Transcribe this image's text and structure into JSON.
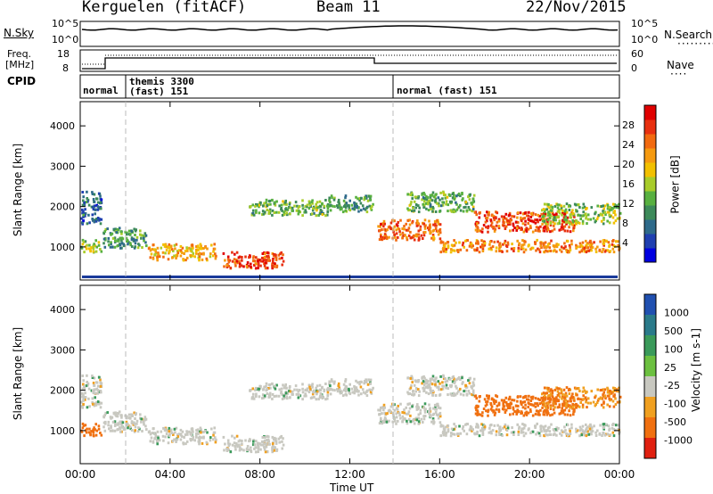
{
  "header": {
    "radar": "Kerguelen (fitACF)",
    "beam": "Beam 11",
    "date": "22/Nov/2015"
  },
  "noise_panel": {
    "left_label": "N.Sky",
    "right_label": "N.Search",
    "left_ticks": [
      "10^5",
      "10^0"
    ],
    "right_ticks": [
      "10^5",
      "10^0"
    ]
  },
  "freq_panel": {
    "left_label_1": "Freq.",
    "left_label_2": "[MHz]",
    "left_ticks": [
      "18",
      "8"
    ],
    "right_label": "Nave",
    "right_ticks": [
      "60",
      "0"
    ]
  },
  "cpid_panel": {
    "label": "CPID",
    "modes": [
      "normal",
      "themis 3300",
      "(fast) 151",
      "normal (fast) 151"
    ]
  },
  "x_axis": {
    "label": "Time UT",
    "ticks": [
      "00:00",
      "04:00",
      "08:00",
      "12:00",
      "16:00",
      "20:00",
      "00:00"
    ]
  },
  "power_panel": {
    "ylabel": "Slant Range [km]",
    "yticks": [
      "1000",
      "2000",
      "3000",
      "4000"
    ],
    "colorbar_label": "Power [dB]",
    "colorbar_ticks": [
      "4",
      "8",
      "12",
      "16",
      "20",
      "24",
      "28"
    ],
    "colors": [
      "#0000e0",
      "#1f3fb0",
      "#2e6a8a",
      "#3d8a5a",
      "#58b040",
      "#a8cc2a",
      "#f2c000",
      "#f59a10",
      "#f26a10",
      "#e83010",
      "#e00000"
    ]
  },
  "velocity_panel": {
    "ylabel": "Slant Range [km]",
    "yticks": [
      "1000",
      "2000",
      "3000",
      "4000"
    ],
    "colorbar_label": "Velocity [m s-1]",
    "colorbar_ticks": [
      "1000",
      "500",
      "100",
      "25",
      "-25",
      "-100",
      "-500",
      "-1000"
    ],
    "colors": [
      "#2050b0",
      "#2a7a8a",
      "#3a9a5a",
      "#6cc040",
      "#c8c8c0",
      "#f0a020",
      "#f07010",
      "#e02010"
    ]
  },
  "chart_data": {
    "type": "heatmap",
    "x_range_hours": [
      0,
      24
    ],
    "y_range_km": [
      180,
      4600
    ],
    "xticks": [
      "00:00",
      "04:00",
      "08:00",
      "12:00",
      "16:00",
      "20:00",
      "00:00"
    ],
    "yticks": [
      1000,
      2000,
      3000,
      4000
    ],
    "power_colorbar": [
      4,
      8,
      12,
      16,
      20,
      24,
      28
    ],
    "velocity_colorbar": [
      1000,
      500,
      100,
      25,
      -25,
      -100,
      -500,
      -1000
    ],
    "scatter_regions": [
      {
        "t": [
          0.0,
          0.9
        ],
        "r": [
          900,
          1200
        ],
        "power": 14,
        "velocity": -400
      },
      {
        "t": [
          0.0,
          0.9
        ],
        "r": [
          1600,
          2400
        ],
        "power": 6,
        "velocity": 0
      },
      {
        "t": [
          1.0,
          3.0
        ],
        "r": [
          1000,
          1500
        ],
        "power": 10,
        "velocity": 0
      },
      {
        "t": [
          3.0,
          6.0
        ],
        "r": [
          700,
          1100
        ],
        "power": 20,
        "velocity": 0
      },
      {
        "t": [
          6.3,
          9.0
        ],
        "r": [
          500,
          900
        ],
        "power": 26,
        "velocity": 0
      },
      {
        "t": [
          7.5,
          11.0
        ],
        "r": [
          1800,
          2200
        ],
        "power": 12,
        "velocity": 0
      },
      {
        "t": [
          11.0,
          13.0
        ],
        "r": [
          1900,
          2300
        ],
        "power": 10,
        "velocity": 0
      },
      {
        "t": [
          13.2,
          16.0
        ],
        "r": [
          1200,
          1700
        ],
        "power": 24,
        "velocity": 0
      },
      {
        "t": [
          14.5,
          17.5
        ],
        "r": [
          1900,
          2400
        ],
        "power": 12,
        "velocity": 0
      },
      {
        "t": [
          17.5,
          22.0
        ],
        "r": [
          1400,
          1900
        ],
        "power": 26,
        "velocity": -300
      },
      {
        "t": [
          16.0,
          24.0
        ],
        "r": [
          900,
          1200
        ],
        "power": 22,
        "velocity": 0
      },
      {
        "t": [
          20.5,
          24.0
        ],
        "r": [
          1600,
          2100
        ],
        "power": 14,
        "velocity": -100
      }
    ],
    "cpid_mode_change_hours": [
      2.0,
      14.0
    ]
  }
}
